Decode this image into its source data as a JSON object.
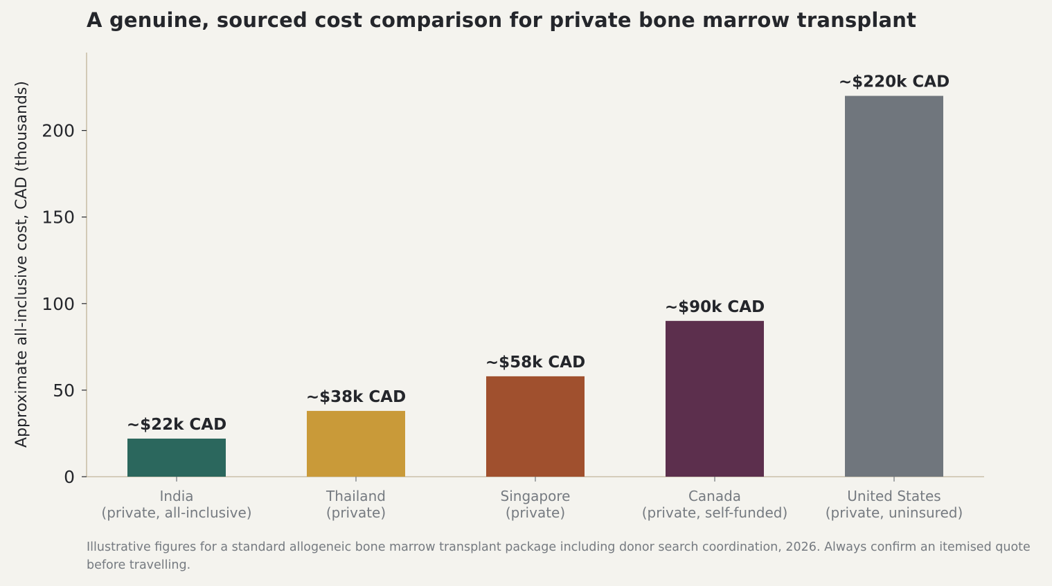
{
  "chart_data": {
    "type": "bar",
    "title": "A genuine, sourced cost comparison for private bone marrow transplant",
    "ylabel": "Approximate all-inclusive cost, CAD (thousands)",
    "xlabel": "",
    "ylim": [
      0,
      245
    ],
    "yticks": [
      0,
      50,
      100,
      150,
      200
    ],
    "grid": false,
    "categories": [
      {
        "name": "India",
        "note": "(private, all-inclusive)"
      },
      {
        "name": "Thailand",
        "note": "(private)"
      },
      {
        "name": "Singapore",
        "note": "(private)"
      },
      {
        "name": "Canada",
        "note": "(private, self-funded)"
      },
      {
        "name": "United States",
        "note": "(private, uninsured)"
      }
    ],
    "values": [
      22,
      38,
      58,
      90,
      220
    ],
    "data_labels": [
      "~$22k CAD",
      "~$38k CAD",
      "~$58k CAD",
      "~$90k CAD",
      "~$220k CAD"
    ],
    "colors": [
      "#2b675d",
      "#c99a39",
      "#a0502e",
      "#5c2f4d",
      "#70767d"
    ]
  },
  "footnote": "Illustrative figures for a standard allogeneic bone marrow transplant package including donor search coordination, 2026. Always confirm an itemised quote before travelling."
}
